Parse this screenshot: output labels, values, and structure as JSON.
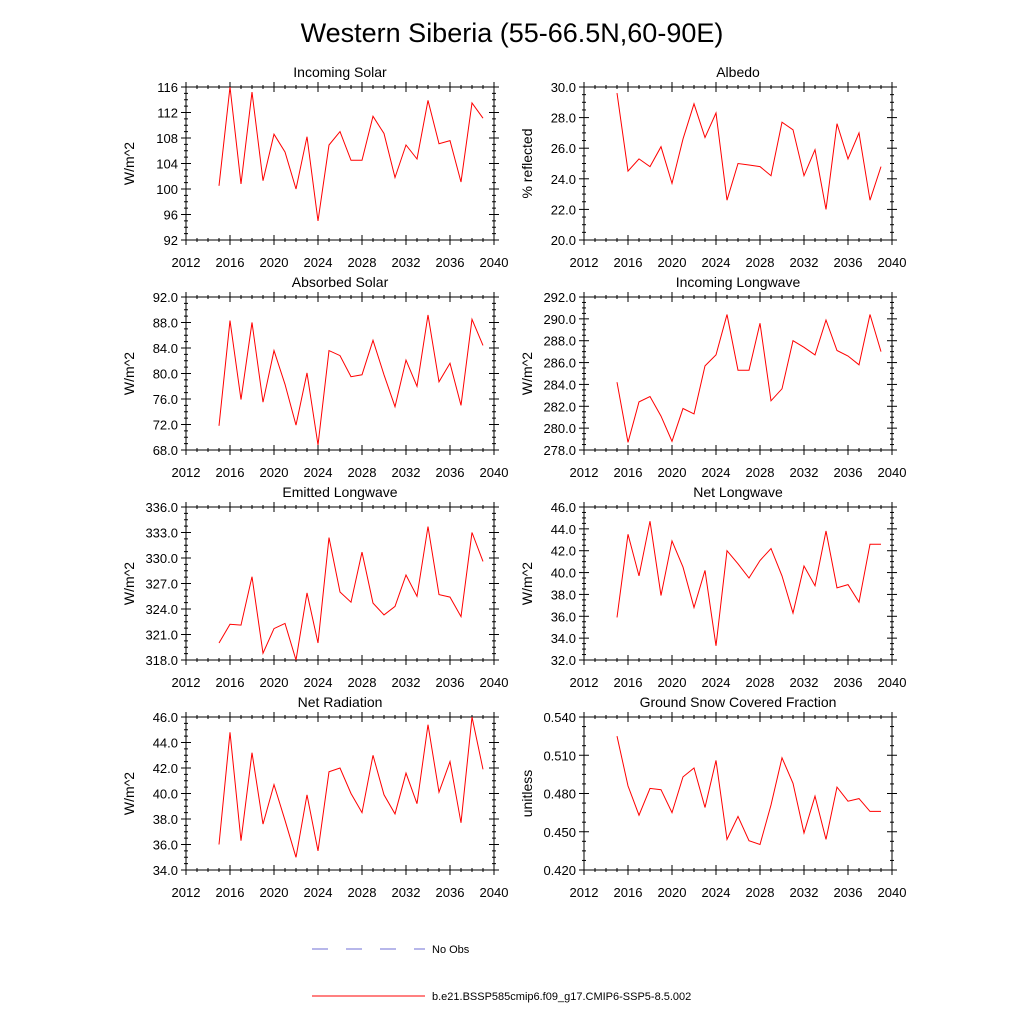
{
  "figure_title": "Western Siberia (55-66.5N,60-90E)",
  "colors": {
    "model_line": "#ff0000",
    "obs_line": "#6f6fd6",
    "axis": "#000000"
  },
  "legend": {
    "obs_label": "No Obs",
    "model_label": "b.e21.BSSP585cmip6.f09_g17.CMIP6-SSP5-8.5.002"
  },
  "chart_data": [
    {
      "type": "line",
      "title": "Incoming Solar",
      "xlabel": "",
      "ylabel": "W/m^2",
      "xlim": [
        2012,
        2040
      ],
      "ylim": [
        92,
        116
      ],
      "xticks": [
        2012,
        2016,
        2020,
        2024,
        2028,
        2032,
        2036,
        2040
      ],
      "yticks": [
        92,
        96,
        100,
        104,
        108,
        112,
        116
      ],
      "ytick_labels": [
        "92",
        "96",
        "100",
        "104",
        "108",
        "112",
        "116"
      ],
      "x": [
        2015,
        2016,
        2017,
        2018,
        2019,
        2020,
        2021,
        2022,
        2023,
        2024,
        2025,
        2026,
        2027,
        2028,
        2029,
        2030,
        2031,
        2032,
        2033,
        2034,
        2035,
        2036,
        2037,
        2038,
        2039
      ],
      "series": [
        {
          "name": "b.e21.BSSP585cmip6.f09_g17.CMIP6-SSP5-8.5.002",
          "values": [
            100.5,
            116.0,
            100.8,
            115.2,
            101.3,
            108.6,
            105.8,
            100.0,
            108.2,
            95.0,
            106.9,
            109.0,
            104.5,
            104.5,
            111.4,
            108.7,
            101.8,
            106.9,
            104.7,
            113.9,
            107.1,
            107.6,
            101.1,
            113.5,
            111.1
          ]
        }
      ]
    },
    {
      "type": "line",
      "title": "Albedo",
      "xlabel": "",
      "ylabel": "% reflected",
      "xlim": [
        2012,
        2040
      ],
      "ylim": [
        20,
        30
      ],
      "xticks": [
        2012,
        2016,
        2020,
        2024,
        2028,
        2032,
        2036,
        2040
      ],
      "yticks": [
        20,
        22,
        24,
        26,
        28,
        30
      ],
      "ytick_labels": [
        "20.0",
        "22.0",
        "24.0",
        "26.0",
        "28.0",
        "30.0"
      ],
      "x": [
        2015,
        2016,
        2017,
        2018,
        2019,
        2020,
        2021,
        2022,
        2023,
        2024,
        2025,
        2026,
        2027,
        2028,
        2029,
        2030,
        2031,
        2032,
        2033,
        2034,
        2035,
        2036,
        2037,
        2038,
        2039
      ],
      "series": [
        {
          "name": "b.e21.BSSP585cmip6.f09_g17.CMIP6-SSP5-8.5.002",
          "values": [
            29.6,
            24.5,
            25.3,
            24.8,
            26.1,
            23.7,
            26.6,
            28.9,
            26.7,
            28.3,
            22.6,
            25.0,
            24.9,
            24.8,
            24.2,
            27.7,
            27.2,
            24.2,
            25.9,
            22.0,
            27.6,
            25.3,
            27.0,
            22.6,
            24.8
          ]
        }
      ]
    },
    {
      "type": "line",
      "title": "Absorbed Solar",
      "xlabel": "",
      "ylabel": "W/m^2",
      "xlim": [
        2012,
        2040
      ],
      "ylim": [
        68,
        92
      ],
      "xticks": [
        2012,
        2016,
        2020,
        2024,
        2028,
        2032,
        2036,
        2040
      ],
      "yticks": [
        68,
        72,
        76,
        80,
        84,
        88,
        92
      ],
      "ytick_labels": [
        "68.0",
        "72.0",
        "76.0",
        "80.0",
        "84.0",
        "88.0",
        "92.0"
      ],
      "x": [
        2015,
        2016,
        2017,
        2018,
        2019,
        2020,
        2021,
        2022,
        2023,
        2024,
        2025,
        2026,
        2027,
        2028,
        2029,
        2030,
        2031,
        2032,
        2033,
        2034,
        2035,
        2036,
        2037,
        2038,
        2039
      ],
      "series": [
        {
          "name": "b.e21.BSSP585cmip6.f09_g17.CMIP6-SSP5-8.5.002",
          "values": [
            71.8,
            88.3,
            75.9,
            88.0,
            75.5,
            83.6,
            78.3,
            71.9,
            80.1,
            68.8,
            83.6,
            82.8,
            79.5,
            79.8,
            85.2,
            79.8,
            74.8,
            82.1,
            78.0,
            89.2,
            78.7,
            81.6,
            75.0,
            88.5,
            84.4
          ]
        }
      ]
    },
    {
      "type": "line",
      "title": "Incoming Longwave",
      "xlabel": "",
      "ylabel": "W/m^2",
      "xlim": [
        2012,
        2040
      ],
      "ylim": [
        278,
        292
      ],
      "xticks": [
        2012,
        2016,
        2020,
        2024,
        2028,
        2032,
        2036,
        2040
      ],
      "yticks": [
        278,
        280,
        282,
        284,
        286,
        288,
        290,
        292
      ],
      "ytick_labels": [
        "278.0",
        "280.0",
        "282.0",
        "284.0",
        "286.0",
        "288.0",
        "290.0",
        "292.0"
      ],
      "x": [
        2015,
        2016,
        2017,
        2018,
        2019,
        2020,
        2021,
        2022,
        2023,
        2024,
        2025,
        2026,
        2027,
        2028,
        2029,
        2030,
        2031,
        2032,
        2033,
        2034,
        2035,
        2036,
        2037,
        2038,
        2039
      ],
      "series": [
        {
          "name": "b.e21.BSSP585cmip6.f09_g17.CMIP6-SSP5-8.5.002",
          "values": [
            284.2,
            278.7,
            282.4,
            282.9,
            281.1,
            278.8,
            281.8,
            281.3,
            285.7,
            286.7,
            290.4,
            285.3,
            285.3,
            289.6,
            282.5,
            283.6,
            288.0,
            287.4,
            286.7,
            289.9,
            287.1,
            286.6,
            285.8,
            290.4,
            287.0
          ]
        }
      ]
    },
    {
      "type": "line",
      "title": "Emitted Longwave",
      "xlabel": "",
      "ylabel": "W/m^2",
      "xlim": [
        2012,
        2040
      ],
      "ylim": [
        318,
        336
      ],
      "xticks": [
        2012,
        2016,
        2020,
        2024,
        2028,
        2032,
        2036,
        2040
      ],
      "yticks": [
        318,
        321,
        324,
        327,
        330,
        333,
        336
      ],
      "ytick_labels": [
        "318.0",
        "321.0",
        "324.0",
        "327.0",
        "330.0",
        "333.0",
        "336.0"
      ],
      "x": [
        2015,
        2016,
        2017,
        2018,
        2019,
        2020,
        2021,
        2022,
        2023,
        2024,
        2025,
        2026,
        2027,
        2028,
        2029,
        2030,
        2031,
        2032,
        2033,
        2034,
        2035,
        2036,
        2037,
        2038,
        2039
      ],
      "series": [
        {
          "name": "b.e21.BSSP585cmip6.f09_g17.CMIP6-SSP5-8.5.002",
          "values": [
            320.0,
            322.2,
            322.1,
            327.8,
            318.8,
            321.7,
            322.3,
            318.0,
            325.9,
            320.0,
            332.4,
            326.0,
            324.8,
            330.7,
            324.7,
            323.3,
            324.3,
            328.0,
            325.5,
            333.7,
            325.7,
            325.4,
            323.1,
            333.0,
            329.6
          ]
        }
      ]
    },
    {
      "type": "line",
      "title": "Net Longwave",
      "xlabel": "",
      "ylabel": "W/m^2",
      "xlim": [
        2012,
        2040
      ],
      "ylim": [
        32,
        46
      ],
      "xticks": [
        2012,
        2016,
        2020,
        2024,
        2028,
        2032,
        2036,
        2040
      ],
      "yticks": [
        32,
        34,
        36,
        38,
        40,
        42,
        44,
        46
      ],
      "ytick_labels": [
        "32.0",
        "34.0",
        "36.0",
        "38.0",
        "40.0",
        "42.0",
        "44.0",
        "46.0"
      ],
      "x": [
        2015,
        2016,
        2017,
        2018,
        2019,
        2020,
        2021,
        2022,
        2023,
        2024,
        2025,
        2026,
        2027,
        2028,
        2029,
        2030,
        2031,
        2032,
        2033,
        2034,
        2035,
        2036,
        2037,
        2038,
        2039
      ],
      "series": [
        {
          "name": "b.e21.BSSP585cmip6.f09_g17.CMIP6-SSP5-8.5.002",
          "values": [
            35.9,
            43.5,
            39.7,
            44.7,
            37.9,
            42.9,
            40.5,
            36.8,
            40.2,
            33.3,
            42.0,
            40.8,
            39.5,
            41.1,
            42.2,
            39.7,
            36.3,
            40.6,
            38.8,
            43.8,
            38.6,
            38.9,
            37.3,
            42.6,
            42.6
          ]
        }
      ]
    },
    {
      "type": "line",
      "title": "Net Radiation",
      "xlabel": "",
      "ylabel": "W/m^2",
      "xlim": [
        2012,
        2040
      ],
      "ylim": [
        34,
        46
      ],
      "xticks": [
        2012,
        2016,
        2020,
        2024,
        2028,
        2032,
        2036,
        2040
      ],
      "yticks": [
        34,
        36,
        38,
        40,
        42,
        44,
        46
      ],
      "ytick_labels": [
        "34.0",
        "36.0",
        "38.0",
        "40.0",
        "42.0",
        "44.0",
        "46.0"
      ],
      "x": [
        2015,
        2016,
        2017,
        2018,
        2019,
        2020,
        2021,
        2022,
        2023,
        2024,
        2025,
        2026,
        2027,
        2028,
        2029,
        2030,
        2031,
        2032,
        2033,
        2034,
        2035,
        2036,
        2037,
        2038,
        2039
      ],
      "series": [
        {
          "name": "b.e21.BSSP585cmip6.f09_g17.CMIP6-SSP5-8.5.002",
          "values": [
            36.0,
            44.8,
            36.3,
            43.2,
            37.6,
            40.7,
            37.9,
            35.0,
            39.9,
            35.5,
            41.7,
            42.0,
            40.0,
            38.5,
            43.0,
            39.9,
            38.4,
            41.6,
            39.2,
            45.4,
            40.1,
            42.5,
            37.7,
            46.0,
            41.9
          ]
        }
      ]
    },
    {
      "type": "line",
      "title": "Ground Snow Covered Fraction",
      "xlabel": "",
      "ylabel": "unitless",
      "xlim": [
        2012,
        2040
      ],
      "ylim": [
        0.42,
        0.54
      ],
      "xticks": [
        2012,
        2016,
        2020,
        2024,
        2028,
        2032,
        2036,
        2040
      ],
      "yticks": [
        0.42,
        0.45,
        0.48,
        0.51,
        0.54
      ],
      "ytick_labels": [
        "0.420",
        "0.450",
        "0.480",
        "0.510",
        "0.540"
      ],
      "x": [
        2015,
        2016,
        2017,
        2018,
        2019,
        2020,
        2021,
        2022,
        2023,
        2024,
        2025,
        2026,
        2027,
        2028,
        2029,
        2030,
        2031,
        2032,
        2033,
        2034,
        2035,
        2036,
        2037,
        2038,
        2039
      ],
      "series": [
        {
          "name": "b.e21.BSSP585cmip6.f09_g17.CMIP6-SSP5-8.5.002",
          "values": [
            0.525,
            0.486,
            0.463,
            0.484,
            0.483,
            0.465,
            0.493,
            0.5,
            0.469,
            0.506,
            0.444,
            0.462,
            0.443,
            0.44,
            0.471,
            0.508,
            0.488,
            0.449,
            0.478,
            0.444,
            0.485,
            0.474,
            0.476,
            0.466,
            0.466
          ]
        }
      ]
    }
  ]
}
